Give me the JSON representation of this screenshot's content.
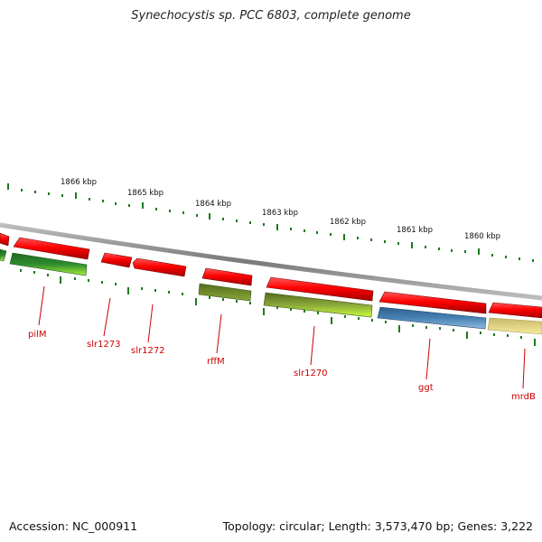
{
  "title": "Synechocystis sp. PCC 6803, complete genome",
  "footer": {
    "accession": "Accession: NC_000911",
    "summary": "Topology: circular; Length: 3,573,470 bp; Genes: 3,222"
  },
  "scale_labels": [
    "1866 kbp",
    "1865 kbp",
    "1864 kbp",
    "1863 kbp",
    "1862 kbp",
    "1861 kbp",
    "1860 kbp"
  ],
  "gene_labels": [
    "pilM",
    "slr1273",
    "slr1272",
    "rffM",
    "slr1270",
    "ggt",
    "mrdB"
  ],
  "colors": {
    "backbone": "#8c8c8c",
    "forward_gene": "#ff0000",
    "reverse_dark_green": "#2e8b2e",
    "reverse_light_green": "#a6f03a",
    "olive": "#6b8e23",
    "blue": "#4682b4",
    "khaki": "#f0e68c",
    "tick": "#1e7a1e",
    "label_red": "#cc0000"
  }
}
